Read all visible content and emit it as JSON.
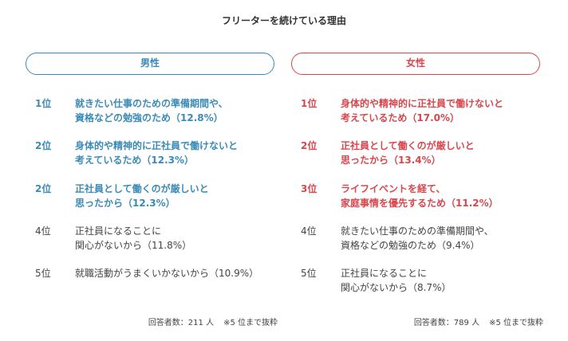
{
  "title": "フリーターを続けている理由",
  "left": {
    "header": "男性",
    "items": [
      {
        "rank": "1位",
        "line1": "就きたい仕事のための準備期間や、",
        "line2": "資格などの勉強のため（12.8%）"
      },
      {
        "rank": "2位",
        "line1": "身体的や精神的に正社員で働けないと",
        "line2": "考えているため（12.3%）"
      },
      {
        "rank": "2位",
        "line1": "正社員として働くのが厳しいと",
        "line2": "思ったから（12.3%）"
      },
      {
        "rank": "4位",
        "line1": "正社員になることに",
        "line2": "関心がないから（11.8%）"
      },
      {
        "rank": "5位",
        "line1": "就職活動がうまくいかないから（10.9%）",
        "line2": ""
      }
    ],
    "respondents": "回答者数：211 人",
    "note": "※5 位まで抜粋"
  },
  "right": {
    "header": "女性",
    "items": [
      {
        "rank": "1位",
        "line1": "身体的や精神的に正社員で働けないと",
        "line2": "考えているため（17.0%）"
      },
      {
        "rank": "2位",
        "line1": "正社員として働くのが厳しいと",
        "line2": "思ったから（13.4%）"
      },
      {
        "rank": "3位",
        "line1": "ライフイベントを経て、",
        "line2": "家庭事情を優先するため（11.2%）"
      },
      {
        "rank": "4位",
        "line1": "就きたい仕事のための準備期間や、",
        "line2": "資格などの勉強のため（9.4%）"
      },
      {
        "rank": "5位",
        "line1": "正社員になることに",
        "line2": "関心がないから（8.7%）"
      }
    ],
    "respondents": "回答者数：789 人",
    "note": "※5 位まで抜粋"
  },
  "colors": {
    "male": "#3a8bb8",
    "female": "#d8474d",
    "text": "#444444"
  }
}
